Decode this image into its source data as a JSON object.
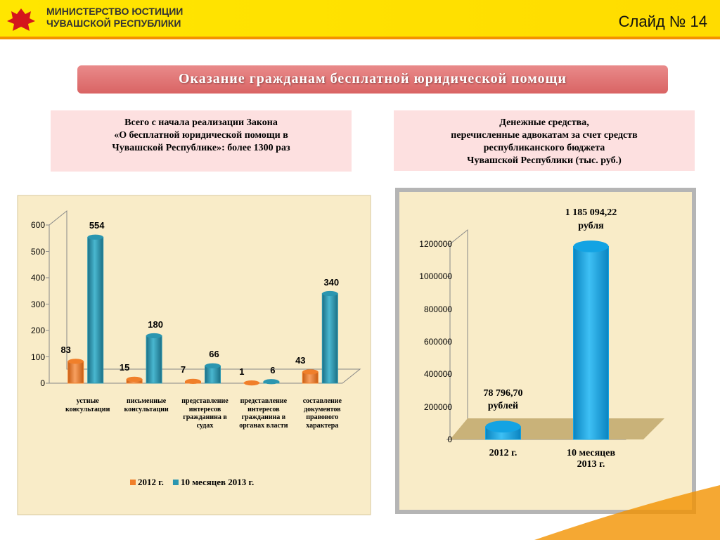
{
  "header": {
    "ministry": [
      "МИНИСТЕРСТВО ЮСТИЦИИ",
      "ЧУВАШСКОЙ РЕСПУБЛИКИ"
    ],
    "slide": "Слайд № 14"
  },
  "title": "Оказание гражданам бесплатной юридической помощи",
  "boxes": [
    [
      "Всего с начала реализации Закона",
      "«О бесплатной юридической помощи в",
      "Чувашской Республике»: более 1300 раз"
    ],
    [
      "Денежные средства,",
      "перечисленные адвокатам за счет средств",
      "республиканского бюджета",
      "Чувашской Республики (тыс. руб.)"
    ]
  ],
  "chart_data": [
    {
      "type": "bar",
      "categories": [
        "устные\nконсультации",
        "письменные\nконсультации",
        "представление\nинтересов\nгражданина в\nсудах",
        "представление\nинтересов\nгражданина в\nорганах власти",
        "составление\nдокументов\nправового\nхарактера"
      ],
      "series": [
        {
          "name": "2012 г.",
          "color": "#f07f2a",
          "values": [
            83,
            15,
            7,
            1,
            43
          ]
        },
        {
          "name": "10 месяцев 2013 г.",
          "color": "#2b96b0",
          "values": [
            554,
            180,
            66,
            6,
            340
          ]
        }
      ],
      "ylim": [
        0,
        600
      ],
      "yticks": [
        0,
        100,
        200,
        300,
        400,
        500,
        600
      ],
      "grid": false,
      "legend": "bottom"
    },
    {
      "type": "bar",
      "categories": [
        "2012 г.",
        "10 месяцев\n2013 г."
      ],
      "values": [
        78796.7,
        1185094.22
      ],
      "value_labels": [
        "78 796,70\nрублей",
        "1 185 094,22\nрубля"
      ],
      "color": "#13a3e3",
      "ylim": [
        0,
        1200000
      ],
      "yticks": [
        0,
        200000,
        400000,
        600000,
        800000,
        1000000,
        1200000
      ],
      "grid": false
    }
  ]
}
